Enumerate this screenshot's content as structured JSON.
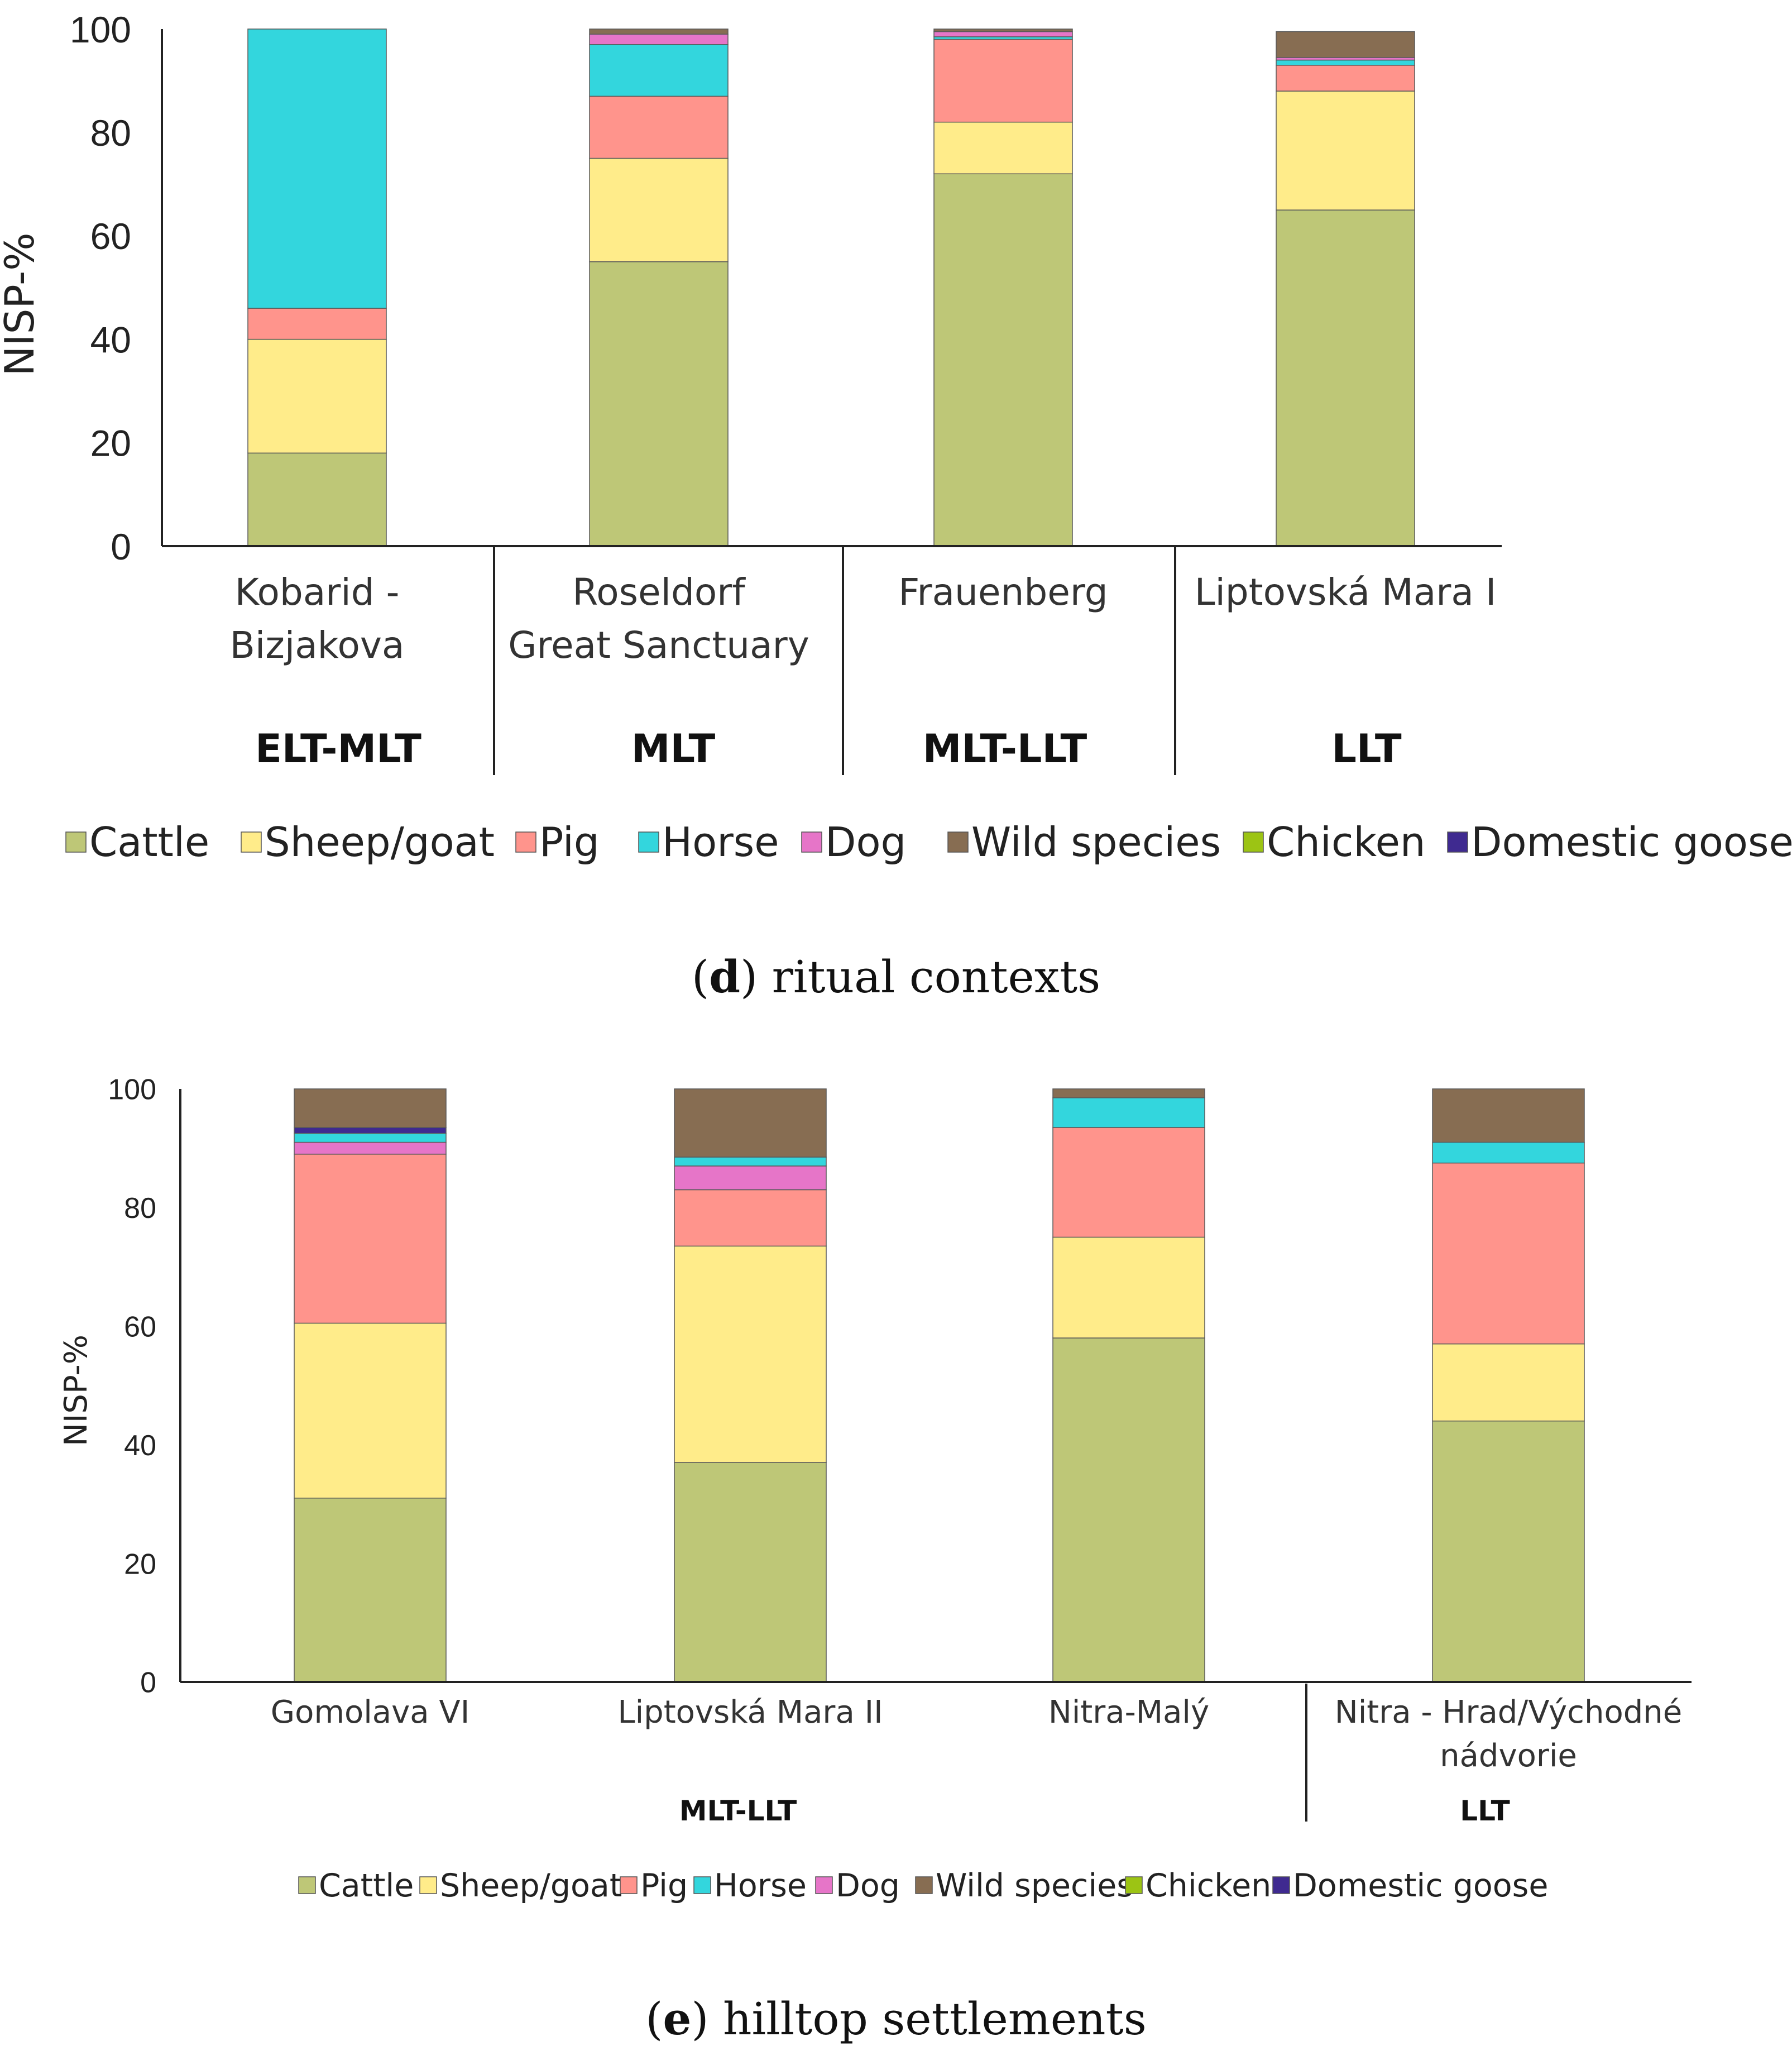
{
  "chart_data": [
    {
      "id": "d",
      "type": "stacked-bar",
      "caption_letter": "d",
      "caption_text": "ritual contexts",
      "ylabel": "NISP-%",
      "ylim": [
        0,
        100
      ],
      "yticks": [
        0,
        20,
        40,
        60,
        80,
        100
      ],
      "categories": [
        [
          "Kobarid -",
          "Bizjakova"
        ],
        [
          "Roseldorf",
          "Great Sanctuary"
        ],
        [
          "Frauenberg"
        ],
        [
          "Liptovská Mara I"
        ]
      ],
      "periods": [
        "ELT-MLT",
        "MLT",
        "MLT-LLT",
        "LLT"
      ],
      "series": [
        {
          "name": "Cattle",
          "color": "#BEC777",
          "values": [
            18,
            55,
            72,
            65
          ]
        },
        {
          "name": "Sheep/goat",
          "color": "#FFEC8A",
          "values": [
            22,
            20,
            10,
            23
          ]
        },
        {
          "name": "Pig",
          "color": "#FF948C",
          "values": [
            6,
            12,
            16,
            5
          ]
        },
        {
          "name": "Horse",
          "color": "#33D6DD",
          "values": [
            54,
            10,
            0.5,
            1
          ]
        },
        {
          "name": "Dog",
          "color": "#E675C8",
          "values": [
            0,
            2,
            1,
            0.5
          ]
        },
        {
          "name": "Wild species",
          "color": "#876D52",
          "values": [
            0,
            1,
            0.5,
            5
          ]
        },
        {
          "name": "Chicken",
          "color": "#9CC414",
          "values": [
            0,
            0,
            0,
            0
          ]
        },
        {
          "name": "Domestic goose",
          "color": "#3F2A90",
          "values": [
            0,
            0,
            0,
            0
          ]
        }
      ]
    },
    {
      "id": "e",
      "type": "stacked-bar",
      "caption_letter": "e",
      "caption_text": "hilltop settlements",
      "ylabel": "NISP-%",
      "ylim": [
        0,
        100
      ],
      "yticks": [
        0,
        20,
        40,
        60,
        80,
        100
      ],
      "categories": [
        [
          "Gomolava VI"
        ],
        [
          "Liptovská Mara II"
        ],
        [
          "Nitra-Malý"
        ],
        [
          "Nitra - Hrad/Východné",
          "nádvorie"
        ]
      ],
      "periods": [
        "MLT-LLT",
        "LLT"
      ],
      "series": [
        {
          "name": "Cattle",
          "color": "#BEC777",
          "values": [
            31,
            37,
            58,
            44
          ]
        },
        {
          "name": "Sheep/goat",
          "color": "#FFEC8A",
          "values": [
            29.5,
            36.5,
            17,
            13
          ]
        },
        {
          "name": "Pig",
          "color": "#FF948C",
          "values": [
            28.5,
            9.5,
            18.5,
            30.5
          ]
        },
        {
          "name": "Dog",
          "color": "#E675C8",
          "values": [
            2,
            4,
            0,
            0
          ]
        },
        {
          "name": "Horse",
          "color": "#33D6DD",
          "values": [
            1.5,
            1.5,
            5,
            3.5
          ]
        },
        {
          "name": "Domestic goose",
          "color": "#3F2A90",
          "values": [
            1,
            0,
            0,
            0
          ]
        },
        {
          "name": "Wild species",
          "color": "#876D52",
          "values": [
            6.5,
            11.5,
            1.5,
            9
          ]
        },
        {
          "name": "Chicken",
          "color": "#9CC414",
          "values": [
            0,
            0,
            0,
            0
          ]
        }
      ]
    }
  ],
  "legend_order": [
    "Cattle",
    "Sheep/goat",
    "Pig",
    "Horse",
    "Dog",
    "Wild species",
    "Chicken",
    "Domestic goose"
  ]
}
